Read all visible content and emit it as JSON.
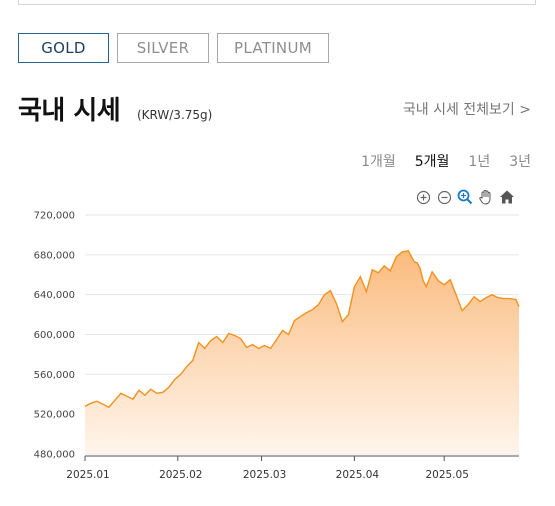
{
  "metal_tabs": [
    {
      "label": "GOLD",
      "active": true
    },
    {
      "label": "SILVER",
      "active": false
    },
    {
      "label": "PLATINUM",
      "active": false
    }
  ],
  "section": {
    "title": "국내 시세",
    "unit": "(KRW/3.75g)",
    "view_all": "국내 시세 전체보기  >"
  },
  "range_tabs": [
    "1개월",
    "5개월",
    "1년",
    "3년"
  ],
  "range_active": 1,
  "toolbar": [
    "zoom-in-icon",
    "zoom-out-icon",
    "magnify-icon",
    "pan-hand-icon",
    "home-icon"
  ],
  "colors": {
    "line": "#f0921f",
    "fill_top": "#fbb776",
    "fill_bottom": "#fff4ea",
    "active_tab": "#2b5f8c"
  },
  "chart_data": {
    "type": "area",
    "ylim": [
      480000,
      720000
    ],
    "y_ticks": [
      "720,000",
      "680,000",
      "640,000",
      "600,000",
      "560,000",
      "520,000",
      "480,000"
    ],
    "y_tick_values": [
      720000,
      680000,
      640000,
      600000,
      560000,
      520000,
      480000
    ],
    "x_range": [
      0,
      145
    ],
    "x_ticks": [
      {
        "label": "2025.01",
        "x": 0
      },
      {
        "label": "2025.02",
        "x": 31
      },
      {
        "label": "2025.03",
        "x": 59
      },
      {
        "label": "2025.04",
        "x": 90
      },
      {
        "label": "2025.05",
        "x": 120
      }
    ],
    "x": [
      0,
      2,
      4,
      6,
      8,
      10,
      12,
      14,
      16,
      18,
      20,
      22,
      24,
      26,
      28,
      30,
      32,
      34,
      36,
      38,
      40,
      42,
      44,
      46,
      48,
      50,
      52,
      54,
      56,
      58,
      60,
      62,
      64,
      66,
      68,
      70,
      72,
      74,
      76,
      78,
      80,
      82,
      84,
      86,
      88,
      90,
      92,
      94,
      96,
      98,
      100,
      102,
      104,
      106,
      108,
      110,
      111,
      112,
      113,
      114,
      116,
      118,
      120,
      122,
      124,
      126,
      128,
      130,
      132,
      134,
      136,
      138,
      140,
      142,
      144,
      145
    ],
    "values": [
      528000,
      531000,
      533000,
      530000,
      527000,
      534000,
      541000,
      538000,
      535000,
      544000,
      539000,
      545000,
      541000,
      542000,
      547000,
      555000,
      560000,
      568000,
      574000,
      592000,
      586000,
      594000,
      598000,
      592000,
      601000,
      599000,
      596000,
      587000,
      590000,
      586000,
      589000,
      586000,
      595000,
      604000,
      600000,
      614000,
      618000,
      622000,
      625000,
      630000,
      640000,
      644000,
      631000,
      613000,
      620000,
      648000,
      658000,
      643000,
      665000,
      662000,
      669000,
      664000,
      678000,
      683000,
      684000,
      673000,
      672000,
      666000,
      654000,
      648000,
      663000,
      654000,
      650000,
      655000,
      640000,
      624000,
      630000,
      638000,
      633000,
      637000,
      640000,
      637000,
      636000,
      636000,
      635000,
      628000
    ]
  }
}
